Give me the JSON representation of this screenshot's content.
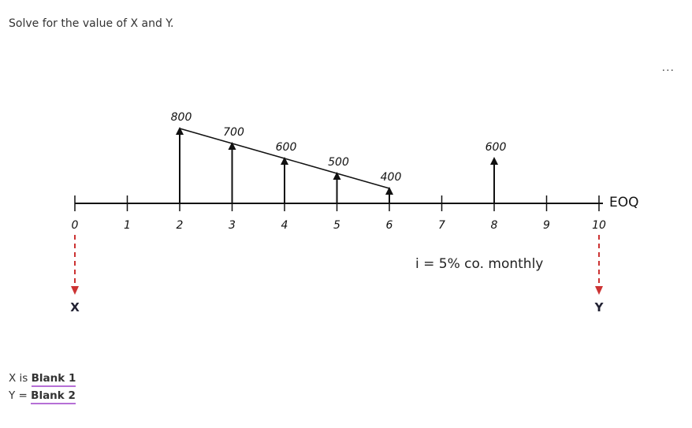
{
  "question": "Solve for the value of X and Y.",
  "menu": "...",
  "diagram": {
    "periods": [
      0,
      1,
      2,
      3,
      4,
      5,
      6,
      7,
      8,
      9,
      10
    ],
    "end_label": "EOQ",
    "cash_flows": [
      {
        "period": 2,
        "amount": 800
      },
      {
        "period": 3,
        "amount": 700
      },
      {
        "period": 4,
        "amount": 600
      },
      {
        "period": 5,
        "amount": 500
      },
      {
        "period": 6,
        "amount": 400
      },
      {
        "period": 8,
        "amount": 600
      }
    ],
    "interest": "i = 5% co. monthly",
    "unknowns": [
      {
        "period": 0,
        "label": "X"
      },
      {
        "period": 10,
        "label": "Y"
      }
    ]
  },
  "answers": [
    {
      "prefix": "X is",
      "blank": "Blank 1"
    },
    {
      "prefix": "Y =",
      "blank": "Blank 2"
    }
  ]
}
